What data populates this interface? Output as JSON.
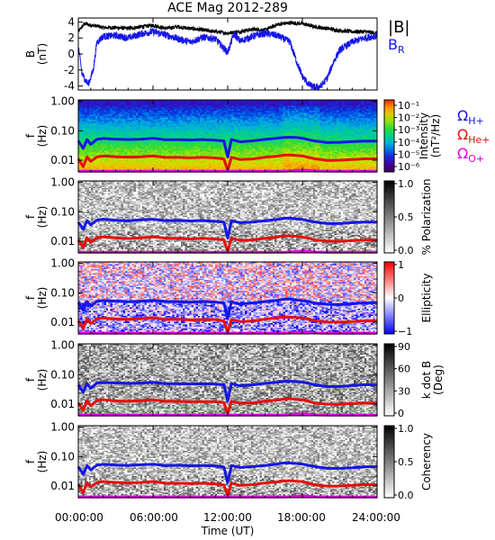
{
  "title": "ACE Mag 2012-289",
  "xlabel": "Time (UT)",
  "x_ticks": [
    "00:00:00",
    "06:00:00",
    "12:00:00",
    "18:00:00",
    "24:00:00"
  ],
  "colors": {
    "B_total": "#000000",
    "B_R": "#1515e6",
    "H": "#1515e6",
    "He": "#e60e0e",
    "O": "#e600e6"
  },
  "chart_data": [
    {
      "type": "line",
      "panel": "magnetic-field",
      "ylabel": "B",
      "yunits": "(nT)",
      "y_ticks": [
        "4",
        "2",
        "0",
        "-2",
        "-4"
      ],
      "ylim": [
        -4.5,
        4.5
      ],
      "xlim_hours": [
        0,
        24
      ],
      "series": [
        {
          "name": "|B|",
          "x_hours": [
            0,
            0.5,
            1,
            1.5,
            2,
            3,
            4,
            5,
            6,
            7,
            8,
            9,
            10,
            11,
            12,
            13,
            14,
            15,
            16,
            17,
            18,
            19,
            20,
            21,
            22,
            23,
            24
          ],
          "values": [
            2.8,
            3.8,
            3.6,
            3.5,
            3.3,
            3.3,
            3.2,
            3.4,
            3.6,
            3.2,
            3.4,
            3.2,
            3.0,
            2.8,
            2.6,
            2.8,
            3.1,
            3.0,
            3.7,
            3.9,
            3.8,
            3.4,
            3.2,
            2.9,
            2.8,
            2.8,
            2.6
          ]
        },
        {
          "name": "B",
          "name_subscript": "R",
          "x_hours": [
            0,
            0.3,
            0.8,
            1.2,
            1.5,
            2,
            3,
            4,
            5,
            6,
            7,
            8,
            9,
            10,
            11,
            12,
            12.5,
            13,
            14,
            15,
            16,
            17,
            17.5,
            18,
            18.5,
            19,
            19.5,
            20,
            20.5,
            21,
            22,
            23,
            24
          ],
          "values": [
            1.0,
            -2.5,
            -3.8,
            -2.0,
            1.5,
            2.2,
            2.3,
            2.0,
            2.5,
            2.8,
            2.4,
            1.9,
            1.5,
            2.1,
            1.9,
            0.2,
            2.5,
            1.6,
            2.2,
            2.6,
            2.3,
            1.5,
            -0.8,
            -2.8,
            -3.8,
            -4.2,
            -4.0,
            -3.0,
            -1.0,
            0.5,
            1.5,
            2.0,
            2.3
          ]
        }
      ]
    },
    {
      "type": "heatmap",
      "panel": "intensity",
      "ylabel": "f",
      "yunits": "(Hz)",
      "y_ticks": [
        "1.00",
        "0.10",
        "0.01"
      ],
      "ylim_hz": [
        0.004,
        1.0
      ],
      "y_scale": "log",
      "colorbar_label": "Intensity",
      "colorbar_units": "(nT²/Hz)",
      "colorbar_ticks": [
        "10⁻¹",
        "10⁻²",
        "10⁻³",
        "10⁻⁴",
        "10⁻⁵",
        "10⁻⁶"
      ],
      "colorscale": "rainbow",
      "legend": [
        {
          "symbol": "Ω",
          "sub": "H+",
          "key": "H"
        },
        {
          "symbol": "Ω",
          "sub": "He+",
          "key": "He"
        },
        {
          "symbol": "Ω",
          "sub": "O+",
          "key": "O"
        }
      ]
    },
    {
      "type": "heatmap",
      "panel": "polarization",
      "ylabel": "f",
      "yunits": "(Hz)",
      "y_ticks": [
        "1.00",
        "0.10",
        "0.01"
      ],
      "y_scale": "log",
      "colorbar_label": "% Polarization",
      "colorbar_ticks": [
        "1.0",
        "0.5",
        "0.0"
      ],
      "colorscale": "gray"
    },
    {
      "type": "heatmap",
      "panel": "ellipticity",
      "ylabel": "f",
      "yunits": "(Hz)",
      "y_ticks": [
        "1.00",
        "0.10",
        "0.01"
      ],
      "y_scale": "log",
      "colorbar_label": "Ellipticity",
      "colorbar_ticks": [
        "1",
        "0",
        "−1"
      ],
      "colorscale": "blue-white-red"
    },
    {
      "type": "heatmap",
      "panel": "k-dot-b",
      "ylabel": "f",
      "yunits": "(Hz)",
      "y_ticks": [
        "1.00",
        "0.10",
        "0.01"
      ],
      "y_scale": "log",
      "colorbar_label": "k dot B",
      "colorbar_units": "(Deg)",
      "colorbar_ticks": [
        "90",
        "60",
        "30",
        "0"
      ],
      "colorscale": "gray"
    },
    {
      "type": "heatmap",
      "panel": "coherency",
      "ylabel": "f",
      "yunits": "(Hz)",
      "y_ticks": [
        "1.00",
        "0.10",
        "0.01"
      ],
      "y_scale": "log",
      "colorbar_label": "Coherency",
      "colorbar_ticks": [
        "1.0",
        "0.5",
        "0.0"
      ],
      "colorscale": "gray"
    }
  ],
  "gyrofrequency_lines": {
    "x_hours": [
      0,
      0.4,
      0.7,
      1.0,
      1.5,
      2,
      3,
      4,
      5,
      6,
      7,
      8,
      9,
      10,
      11,
      11.7,
      12,
      12.3,
      13,
      14,
      15,
      16,
      16.5,
      17,
      17.5,
      18,
      18.5,
      19,
      20,
      21,
      22,
      23,
      24
    ],
    "H_hz": [
      0.045,
      0.025,
      0.05,
      0.035,
      0.052,
      0.055,
      0.052,
      0.05,
      0.052,
      0.055,
      0.05,
      0.05,
      0.048,
      0.05,
      0.048,
      0.045,
      0.013,
      0.05,
      0.042,
      0.045,
      0.05,
      0.055,
      0.06,
      0.06,
      0.058,
      0.055,
      0.05,
      0.045,
      0.04,
      0.04,
      0.042,
      0.045,
      0.045
    ],
    "He_hz": [
      0.011,
      0.006,
      0.013,
      0.009,
      0.013,
      0.014,
      0.013,
      0.0125,
      0.013,
      0.014,
      0.0125,
      0.0125,
      0.012,
      0.0125,
      0.012,
      0.011,
      0.0045,
      0.0125,
      0.0105,
      0.011,
      0.0125,
      0.014,
      0.015,
      0.015,
      0.0145,
      0.014,
      0.0125,
      0.011,
      0.01,
      0.01,
      0.0105,
      0.011,
      0.011
    ],
    "O_hz": [
      0.0042,
      0.0042,
      0.0042,
      0.0042,
      0.0042,
      0.0042,
      0.0042,
      0.0042,
      0.0042,
      0.0042,
      0.0042,
      0.0042,
      0.0042,
      0.0042,
      0.0042,
      0.0042,
      0.0042,
      0.0042,
      0.0042,
      0.0042,
      0.0042,
      0.0042,
      0.0042,
      0.0043,
      0.0045,
      0.0046,
      0.0045,
      0.0043,
      0.0042,
      0.0042,
      0.0042,
      0.0042,
      0.0042
    ]
  }
}
